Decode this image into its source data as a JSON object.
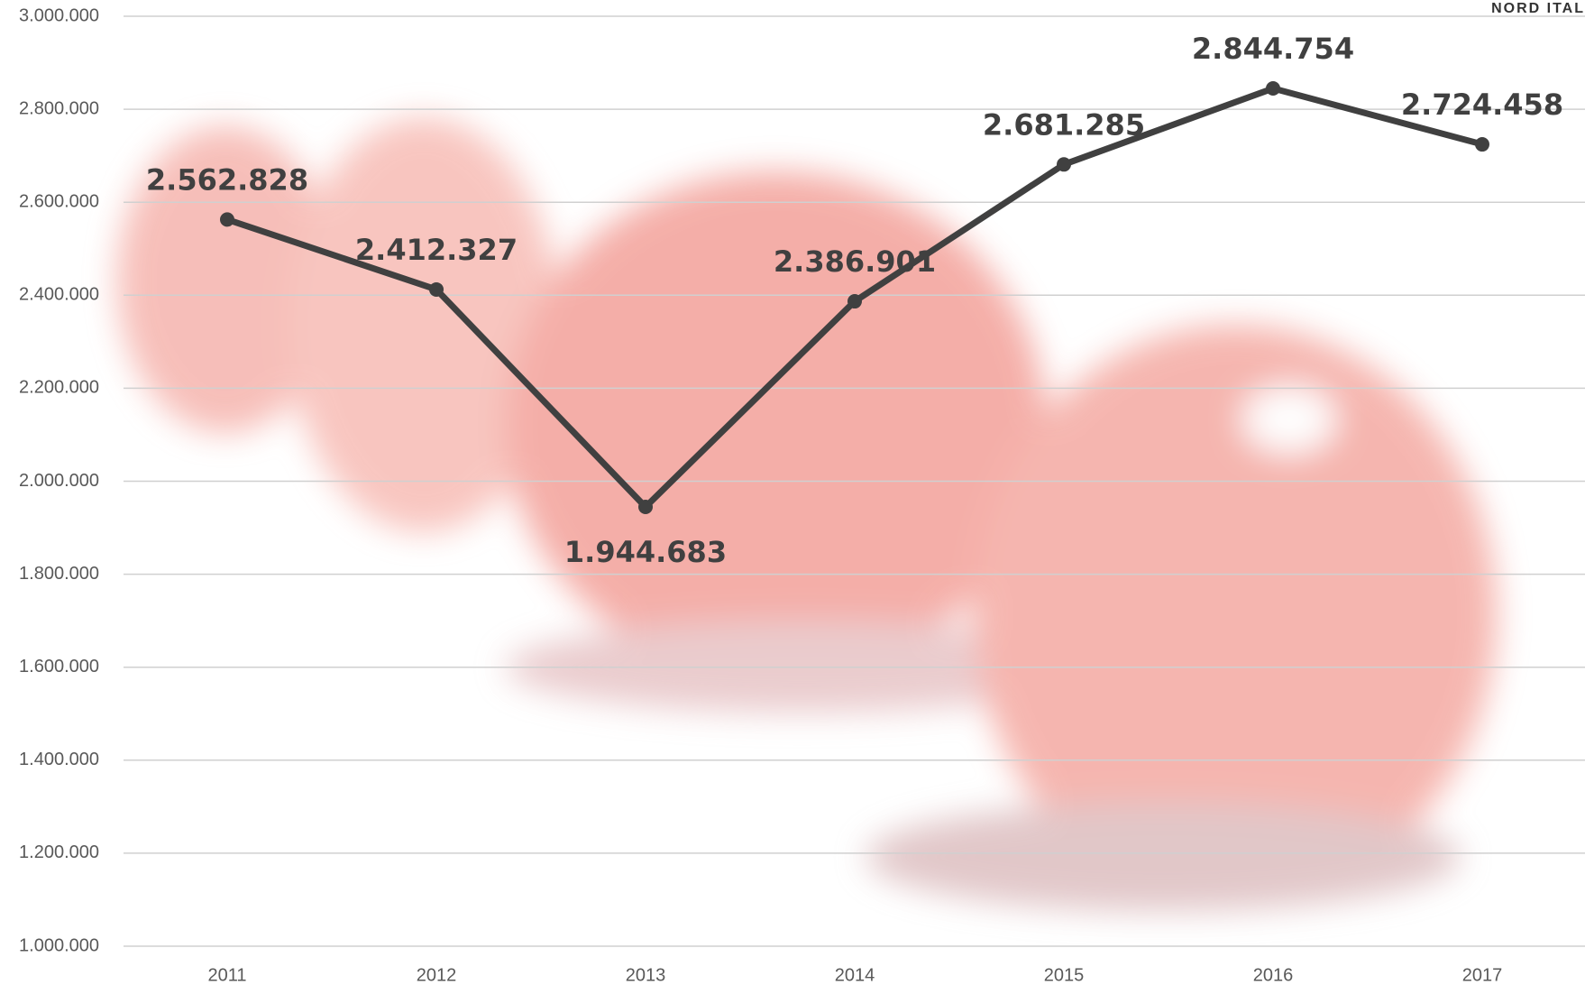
{
  "chart_data": {
    "type": "line",
    "annotation": "NORD ITAL",
    "categories": [
      "2011",
      "2012",
      "2013",
      "2014",
      "2015",
      "2016",
      "2017"
    ],
    "series": [
      {
        "color": "#404040",
        "values": [
          2562828,
          2412327,
          1944683,
          2386901,
          2681285,
          2844754,
          2724458
        ],
        "value_labels": [
          "2.562.828",
          "2.412.327",
          "1.944.683",
          "2.386.901",
          "2.681.285",
          "2.844.754",
          "2.724.458"
        ]
      }
    ],
    "ylim": [
      1000000,
      3000000
    ],
    "yticks": [
      {
        "value": 1000000,
        "label": "1.000.000"
      },
      {
        "value": 1200000,
        "label": "1.200.000"
      },
      {
        "value": 1400000,
        "label": "1.400.000"
      },
      {
        "value": 1600000,
        "label": "1.600.000"
      },
      {
        "value": 1800000,
        "label": "1.800.000"
      },
      {
        "value": 2000000,
        "label": "2.000.000"
      },
      {
        "value": 2200000,
        "label": "2.200.000"
      },
      {
        "value": 2400000,
        "label": "2.400.000"
      },
      {
        "value": 2600000,
        "label": "2.600.000"
      },
      {
        "value": 2800000,
        "label": "2.800.000"
      },
      {
        "value": 3000000,
        "label": "3.000.000"
      }
    ],
    "grid": true
  }
}
